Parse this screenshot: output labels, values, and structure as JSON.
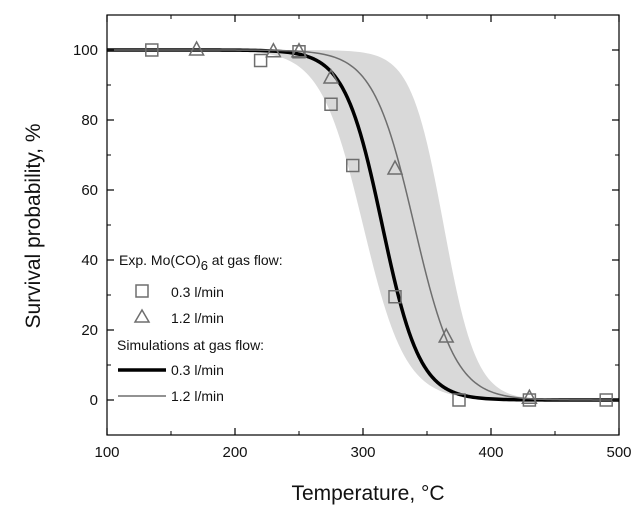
{
  "chart_data": {
    "type": "scatter",
    "xlabel": "Temperature, °C",
    "ylabel": "Survival probability, %",
    "xlim": [
      100,
      500
    ],
    "ylim": [
      -10,
      110
    ],
    "x_ticks": [
      100,
      200,
      300,
      400,
      500
    ],
    "y_ticks": [
      0,
      20,
      40,
      60,
      80,
      100
    ],
    "grid": false,
    "legend": {
      "placement": "center-left",
      "exp_heading": "Exp. Mo(CO)",
      "exp_heading_sub": "6",
      "exp_heading_tail": " at gas flow:",
      "sim_heading": "Simulations at gas flow:"
    },
    "series": [
      {
        "name": "0.3 l/min",
        "kind": "exp",
        "marker": "square",
        "points": [
          [
            135,
            100
          ],
          [
            220,
            97
          ],
          [
            250,
            99.5
          ],
          [
            275,
            84.5
          ],
          [
            292,
            67
          ],
          [
            325,
            29.5
          ],
          [
            375,
            0
          ],
          [
            430,
            0
          ],
          [
            490,
            0
          ]
        ]
      },
      {
        "name": "1.2 l/min",
        "kind": "exp",
        "marker": "triangle",
        "points": [
          [
            170,
            100
          ],
          [
            230,
            99.5
          ],
          [
            250,
            99.5
          ],
          [
            275,
            92
          ],
          [
            325,
            66
          ],
          [
            365,
            18
          ],
          [
            430,
            0.5
          ]
        ]
      },
      {
        "name": "0.3 l/min",
        "kind": "sim",
        "stroke": "#000000",
        "line_width": "thick",
        "model": {
          "x0": 315,
          "k": 0.068
        }
      },
      {
        "name": "1.2 l/min",
        "kind": "sim",
        "stroke": "#6e6e6e",
        "line_width": "thin",
        "model": {
          "x0": 340,
          "k": 0.062
        }
      }
    ],
    "band": {
      "color": "#d9d9d9",
      "lower_model": {
        "x0": 300,
        "k": 0.06
      },
      "upper_model": {
        "x0": 363,
        "k": 0.078
      }
    },
    "colors": {
      "marker": "#6e6e6e",
      "axis": "#000000"
    }
  }
}
